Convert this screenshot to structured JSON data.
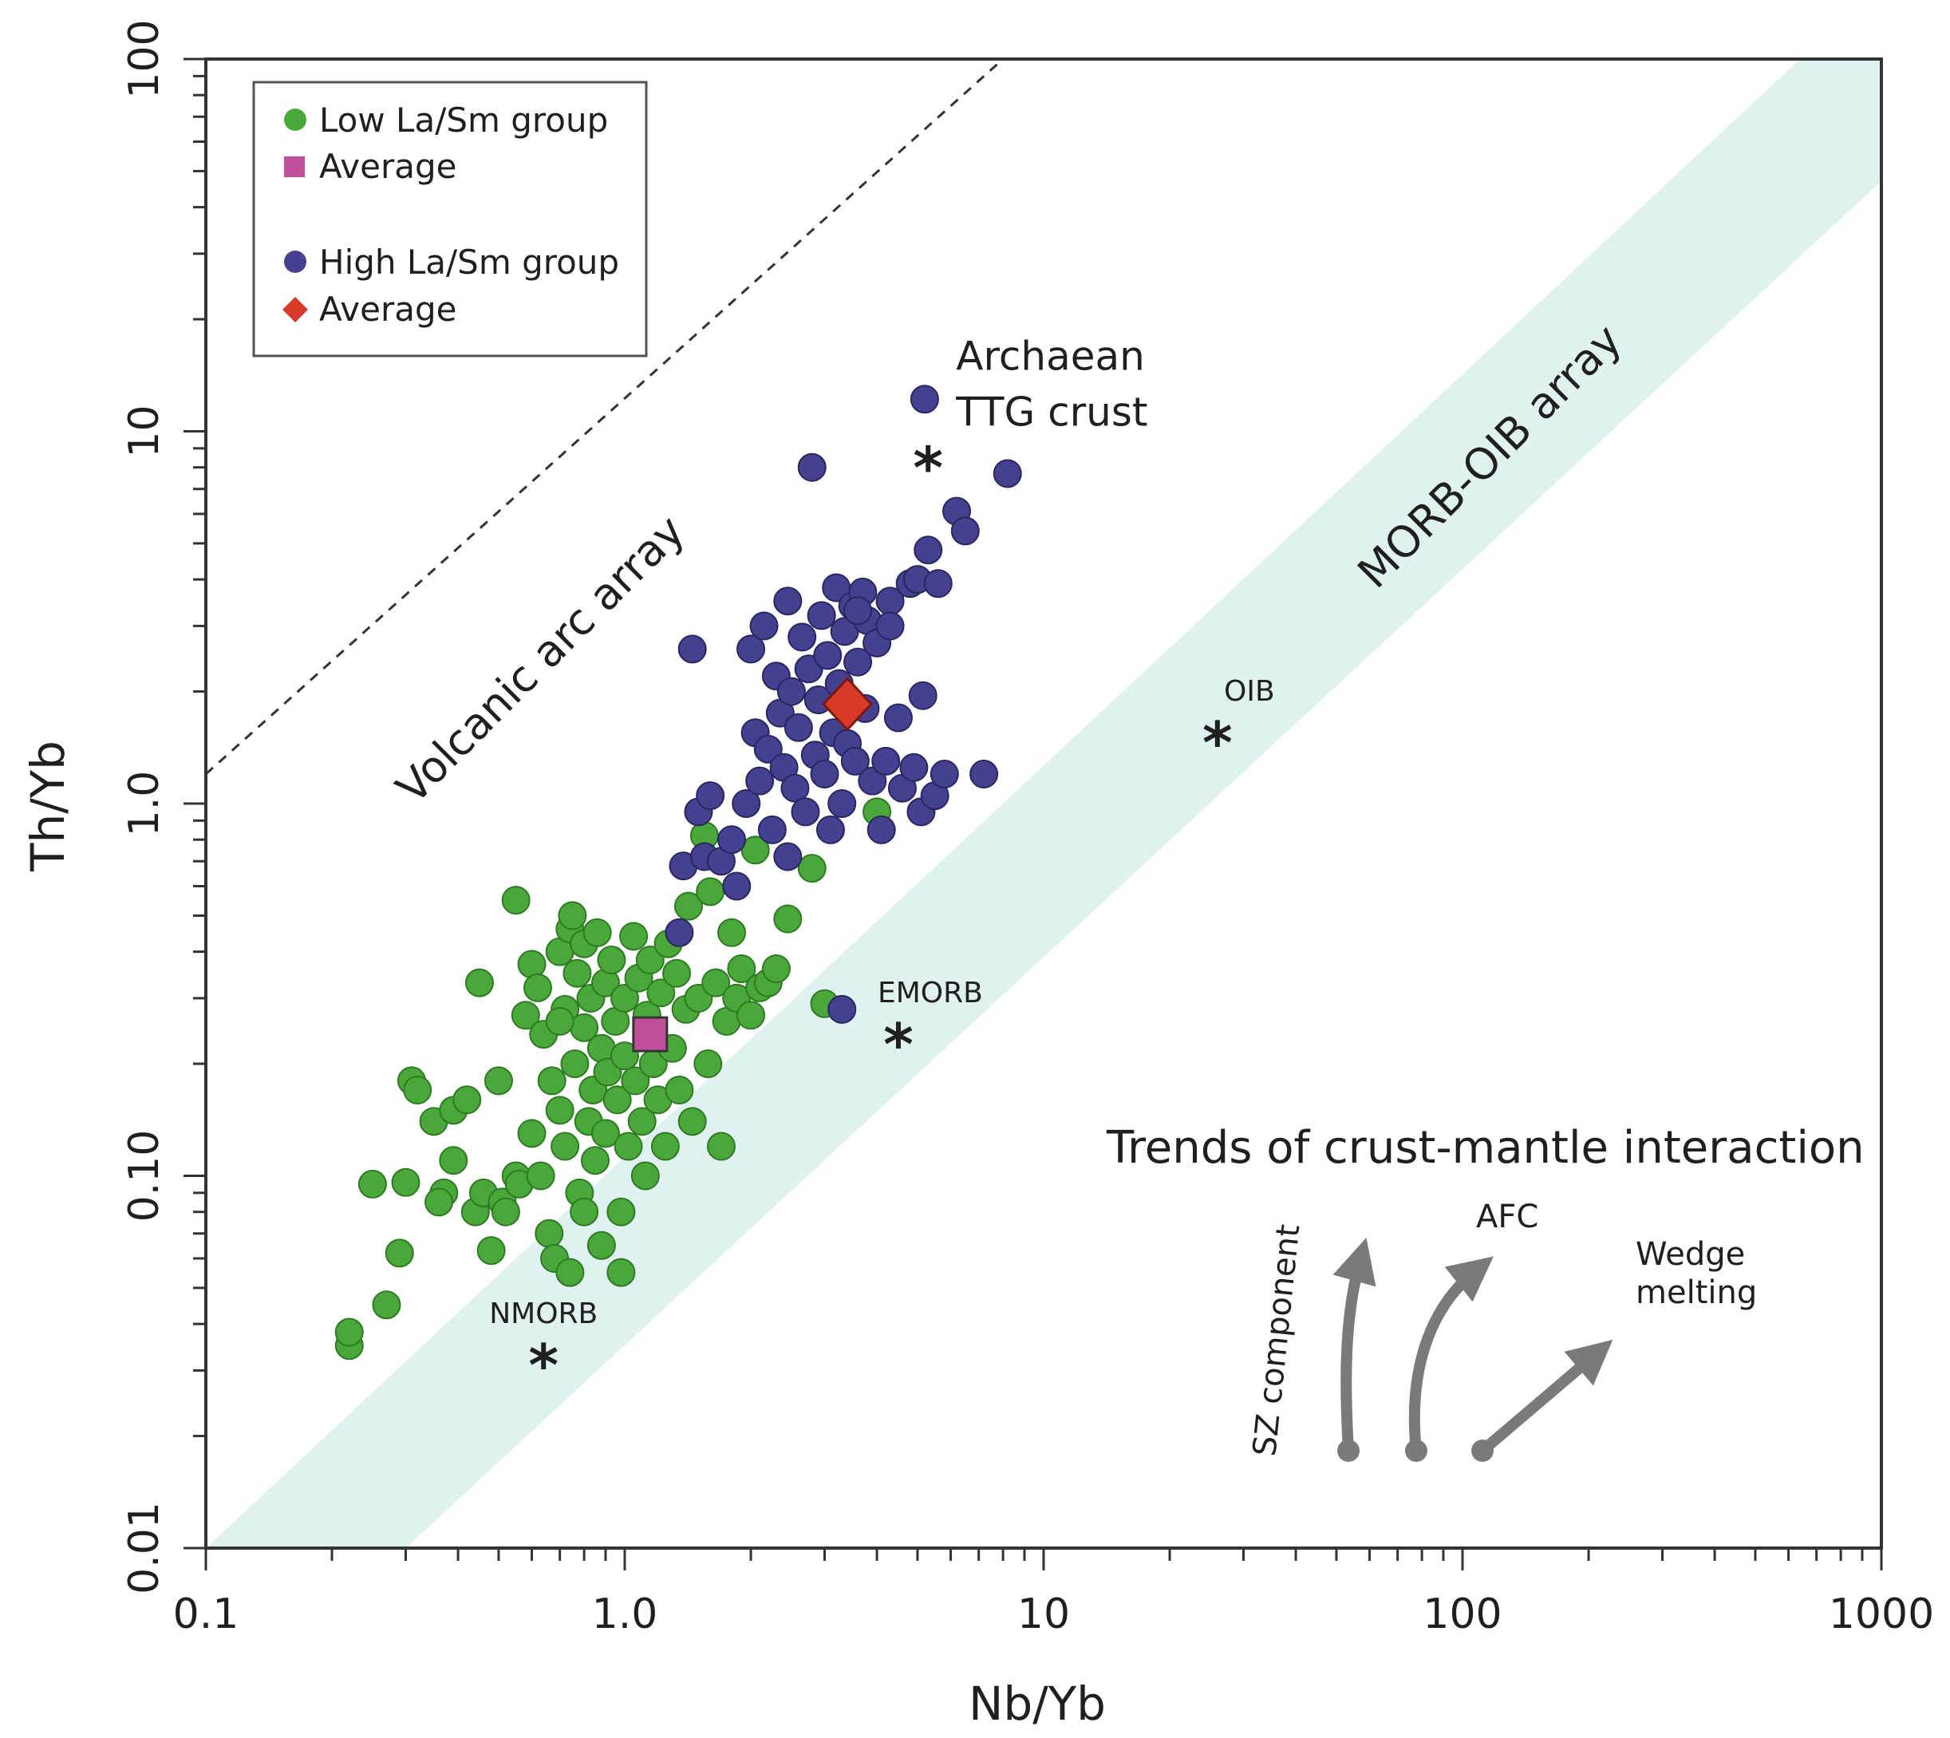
{
  "chart_data": {
    "type": "scatter",
    "xscale": "log",
    "yscale": "log",
    "xlim": [
      0.1,
      1000
    ],
    "ylim": [
      0.01,
      100
    ],
    "xlabel": "Nb/Yb",
    "ylabel": "Th/Yb",
    "x_ticks": [
      {
        "value": 0.1,
        "label": "0.1"
      },
      {
        "value": 1,
        "label": "1.0"
      },
      {
        "value": 10,
        "label": "10"
      },
      {
        "value": 100,
        "label": "100"
      },
      {
        "value": 1000,
        "label": "1000"
      }
    ],
    "y_ticks": [
      {
        "value": 0.01,
        "label": "0.01"
      },
      {
        "value": 0.1,
        "label": "0.10"
      },
      {
        "value": 1,
        "label": "1.0"
      },
      {
        "value": 10,
        "label": "10"
      },
      {
        "value": 100,
        "label": "100"
      }
    ],
    "legend": {
      "position": "top-left",
      "entries": [
        {
          "label": "Low La/Sm group",
          "marker": "circle",
          "color": "#4aa83a"
        },
        {
          "label": "Average",
          "marker": "square",
          "color": "#c0509a"
        },
        {
          "label": "High La/Sm group",
          "marker": "circle",
          "color": "#45408f"
        },
        {
          "label": "Average",
          "marker": "diamond",
          "color": "#d83a2a"
        }
      ]
    },
    "arrays": {
      "volcanic_arc_label": "Volcanic arc array",
      "morb_oib_label": "MORB-OIB array",
      "volcanic_arc_line": [
        [
          0.1,
          1.2
        ],
        [
          8.0,
          100
        ]
      ],
      "morb_oib_band": {
        "lower": [
          [
            0.3,
            0.01
          ],
          [
            1000,
            47
          ]
        ],
        "upper": [
          [
            0.1,
            0.01
          ],
          [
            1000,
            160
          ]
        ]
      }
    },
    "reference_points": [
      {
        "label": "NMORB",
        "x": 0.64,
        "y": 0.033
      },
      {
        "label": "EMORB",
        "x": 4.5,
        "y": 0.24
      },
      {
        "label": "OIB",
        "x": 26,
        "y": 1.55
      },
      {
        "label": "Archaean TTG crust",
        "x": 5.3,
        "y": 8.5
      }
    ],
    "averages": {
      "low": {
        "x": 1.15,
        "y": 0.24
      },
      "high": {
        "x": 3.4,
        "y": 1.85
      }
    },
    "trends": {
      "title": "Trends of crust-mantle interaction",
      "items": [
        "SZ component",
        "AFC",
        "Wedge melting"
      ]
    },
    "series": [
      {
        "name": "Low La/Sm group",
        "color": "#4aa83a",
        "points": [
          [
            0.22,
            0.035
          ],
          [
            0.22,
            0.038
          ],
          [
            0.27,
            0.045
          ],
          [
            0.25,
            0.095
          ],
          [
            0.3,
            0.096
          ],
          [
            0.29,
            0.062
          ],
          [
            0.31,
            0.18
          ],
          [
            0.32,
            0.17
          ],
          [
            0.35,
            0.14
          ],
          [
            0.37,
            0.09
          ],
          [
            0.36,
            0.085
          ],
          [
            0.39,
            0.11
          ],
          [
            0.39,
            0.15
          ],
          [
            0.42,
            0.16
          ],
          [
            0.44,
            0.08
          ],
          [
            0.45,
            0.33
          ],
          [
            0.46,
            0.09
          ],
          [
            0.48,
            0.063
          ],
          [
            0.5,
            0.18
          ],
          [
            0.51,
            0.085
          ],
          [
            0.52,
            0.08
          ],
          [
            0.55,
            0.1
          ],
          [
            0.56,
            0.095
          ],
          [
            0.58,
            0.27
          ],
          [
            0.6,
            0.13
          ],
          [
            0.6,
            0.37
          ],
          [
            0.62,
            0.32
          ],
          [
            0.63,
            0.1
          ],
          [
            0.64,
            0.24
          ],
          [
            0.66,
            0.07
          ],
          [
            0.55,
            0.55
          ],
          [
            0.67,
            0.18
          ],
          [
            0.7,
            0.4
          ],
          [
            0.7,
            0.15
          ],
          [
            0.72,
            0.12
          ],
          [
            0.72,
            0.28
          ],
          [
            0.74,
            0.46
          ],
          [
            0.75,
            0.5
          ],
          [
            0.76,
            0.2
          ],
          [
            0.77,
            0.35
          ],
          [
            0.78,
            0.09
          ],
          [
            0.8,
            0.25
          ],
          [
            0.8,
            0.42
          ],
          [
            0.82,
            0.14
          ],
          [
            0.83,
            0.3
          ],
          [
            0.84,
            0.17
          ],
          [
            0.85,
            0.11
          ],
          [
            0.86,
            0.45
          ],
          [
            0.88,
            0.22
          ],
          [
            0.9,
            0.13
          ],
          [
            0.9,
            0.33
          ],
          [
            0.91,
            0.19
          ],
          [
            0.93,
            0.38
          ],
          [
            0.95,
            0.26
          ],
          [
            0.96,
            0.16
          ],
          [
            0.98,
            0.08
          ],
          [
            0.98,
            0.055
          ],
          [
            1.0,
            0.3
          ],
          [
            1.0,
            0.21
          ],
          [
            1.02,
            0.12
          ],
          [
            1.05,
            0.44
          ],
          [
            1.06,
            0.18
          ],
          [
            1.08,
            0.34
          ],
          [
            1.1,
            0.14
          ],
          [
            1.12,
            0.1
          ],
          [
            1.13,
            0.27
          ],
          [
            1.15,
            0.38
          ],
          [
            1.17,
            0.2
          ],
          [
            1.2,
            0.16
          ],
          [
            1.22,
            0.31
          ],
          [
            1.25,
            0.12
          ],
          [
            1.27,
            0.42
          ],
          [
            1.3,
            0.22
          ],
          [
            1.33,
            0.35
          ],
          [
            1.35,
            0.17
          ],
          [
            1.4,
            0.28
          ],
          [
            1.42,
            0.53
          ],
          [
            1.45,
            0.14
          ],
          [
            1.5,
            0.3
          ],
          [
            1.55,
            0.82
          ],
          [
            1.58,
            0.2
          ],
          [
            1.6,
            0.58
          ],
          [
            1.65,
            0.33
          ],
          [
            1.7,
            0.12
          ],
          [
            1.75,
            0.26
          ],
          [
            1.8,
            0.45
          ],
          [
            1.85,
            0.3
          ],
          [
            1.9,
            0.36
          ],
          [
            2.0,
            0.27
          ],
          [
            2.05,
            0.75
          ],
          [
            2.1,
            0.32
          ],
          [
            2.2,
            0.33
          ],
          [
            2.3,
            0.36
          ],
          [
            2.45,
            0.49
          ],
          [
            2.8,
            0.67
          ],
          [
            3.0,
            0.29
          ],
          [
            4.0,
            0.95
          ],
          [
            0.68,
            0.06
          ],
          [
            0.74,
            0.055
          ],
          [
            0.88,
            0.065
          ],
          [
            0.8,
            0.08
          ],
          [
            0.7,
            0.26
          ]
        ]
      },
      {
        "name": "High La/Sm group",
        "color": "#45408f",
        "points": [
          [
            1.35,
            0.45
          ],
          [
            1.38,
            0.68
          ],
          [
            1.45,
            2.6
          ],
          [
            1.5,
            0.95
          ],
          [
            1.55,
            0.72
          ],
          [
            1.6,
            1.05
          ],
          [
            1.7,
            0.7
          ],
          [
            1.8,
            0.8
          ],
          [
            1.85,
            0.6
          ],
          [
            1.95,
            1.0
          ],
          [
            2.0,
            2.6
          ],
          [
            2.05,
            1.55
          ],
          [
            2.1,
            1.15
          ],
          [
            2.15,
            3.0
          ],
          [
            2.2,
            1.4
          ],
          [
            2.25,
            0.85
          ],
          [
            2.3,
            2.2
          ],
          [
            2.35,
            1.75
          ],
          [
            2.4,
            1.25
          ],
          [
            2.45,
            3.5
          ],
          [
            2.5,
            2.0
          ],
          [
            2.55,
            1.1
          ],
          [
            2.6,
            1.6
          ],
          [
            2.65,
            2.8
          ],
          [
            2.7,
            0.95
          ],
          [
            2.75,
            2.3
          ],
          [
            2.8,
            8.0
          ],
          [
            2.85,
            1.35
          ],
          [
            2.9,
            1.9
          ],
          [
            2.95,
            3.2
          ],
          [
            3.0,
            1.2
          ],
          [
            3.05,
            2.5
          ],
          [
            3.1,
            0.85
          ],
          [
            3.15,
            1.55
          ],
          [
            3.2,
            3.8
          ],
          [
            3.25,
            2.1
          ],
          [
            3.3,
            1.0
          ],
          [
            3.35,
            2.9
          ],
          [
            3.4,
            1.45
          ],
          [
            3.5,
            3.4
          ],
          [
            3.55,
            1.3
          ],
          [
            3.6,
            2.4
          ],
          [
            3.7,
            3.7
          ],
          [
            3.75,
            1.8
          ],
          [
            3.8,
            3.1
          ],
          [
            3.9,
            1.15
          ],
          [
            4.0,
            2.7
          ],
          [
            4.1,
            0.85
          ],
          [
            4.2,
            1.3
          ],
          [
            4.3,
            3.5
          ],
          [
            4.5,
            1.7
          ],
          [
            4.6,
            1.1
          ],
          [
            4.8,
            3.9
          ],
          [
            4.9,
            1.25
          ],
          [
            5.0,
            4.0
          ],
          [
            5.1,
            0.95
          ],
          [
            5.15,
            1.95
          ],
          [
            5.2,
            12.2
          ],
          [
            5.3,
            4.8
          ],
          [
            5.5,
            1.05
          ],
          [
            5.6,
            3.9
          ],
          [
            5.8,
            1.2
          ],
          [
            6.2,
            6.1
          ],
          [
            6.5,
            5.4
          ],
          [
            7.2,
            1.2
          ],
          [
            8.2,
            7.7
          ],
          [
            3.3,
            0.28
          ],
          [
            2.45,
            0.72
          ],
          [
            3.6,
            3.3
          ],
          [
            4.3,
            3.0
          ]
        ]
      }
    ]
  }
}
